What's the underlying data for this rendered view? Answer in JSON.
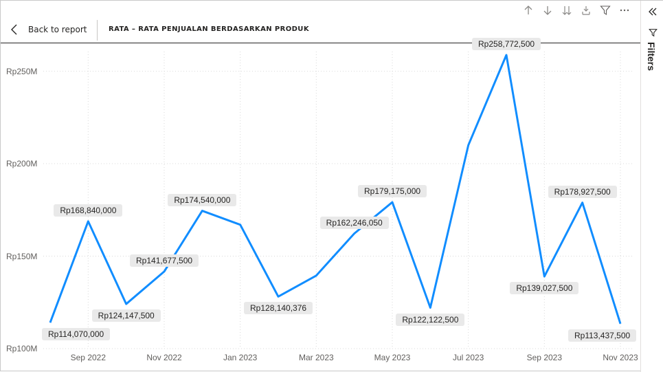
{
  "header": {
    "back_label": "Back to report",
    "title": "RATA – RATA PENJUALAN BERDASARKAN PRODUK"
  },
  "filters_pane": {
    "label": "Filters"
  },
  "toolbar": {
    "icons": [
      "arrow-up-icon",
      "arrow-down-icon",
      "double-arrow-down-icon",
      "expand-hierarchy-icon",
      "filter-icon",
      "more-options-icon"
    ]
  },
  "colors": {
    "line": "#118DFF",
    "label_bg": "#E9E9E9",
    "grid": "#D9D9D9"
  },
  "chart_data": {
    "type": "line",
    "title": "",
    "xlabel": "",
    "ylabel": "",
    "ylim": [
      100000000,
      260000000
    ],
    "y_ticks": [
      {
        "value": 100000000,
        "label": "Rp100M"
      },
      {
        "value": 150000000,
        "label": "Rp150M"
      },
      {
        "value": 200000000,
        "label": "Rp200M"
      },
      {
        "value": 250000000,
        "label": "Rp250M"
      }
    ],
    "x_ticks": [
      "Sep 2022",
      "Nov 2022",
      "Jan 2023",
      "Mar 2023",
      "May 2023",
      "Jul 2023",
      "Sep 2023",
      "Nov 2023"
    ],
    "x": [
      "2022-08",
      "2022-09",
      "2022-10",
      "2022-11",
      "2022-12",
      "2023-01",
      "2023-02",
      "2023-03",
      "2023-04",
      "2023-05",
      "2023-06",
      "2023-07",
      "2023-08",
      "2023-09",
      "2023-10",
      "2023-11"
    ],
    "series": [
      {
        "values": [
          114070000,
          168840000,
          124147500,
          141677500,
          174540000,
          167000000,
          128140376,
          139500000,
          162246050,
          179175000,
          122122500,
          210000000,
          258772500,
          139027500,
          178927500,
          113437500
        ],
        "labels": [
          "Rp114,070,000",
          "Rp168,840,000",
          "Rp124,147,500",
          "Rp141,677,500",
          "Rp174,540,000",
          "",
          "Rp128,140,376",
          "",
          "Rp162,246,050",
          "Rp179,175,000",
          "Rp122,122,500",
          "",
          "Rp258,772,500",
          "Rp139,027,500",
          "Rp178,927,500",
          "Rp113,437,500"
        ]
      }
    ],
    "grid": true
  }
}
